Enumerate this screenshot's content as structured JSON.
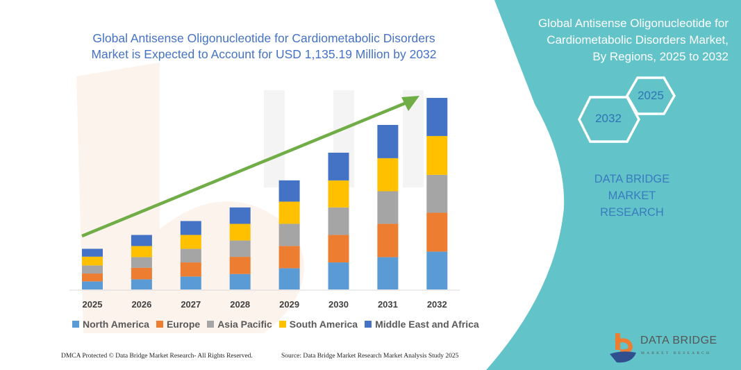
{
  "header": {
    "title_line1": "Global Antisense Oligonucleotide for Cardiometabolic Disorders",
    "title_line2": "Market is Expected to Account for USD 1,135.19 Million by 2032"
  },
  "side_panel": {
    "title_line1": "Global Antisense Oligonucleotide for",
    "title_line2": "Cardiometabolic Disorders Market,",
    "title_line3": "By Regions, 2025 to 2032",
    "hex_start": "2025",
    "hex_end": "2032",
    "brand_line1": "DATA BRIDGE MARKET",
    "brand_line2": "RESEARCH",
    "color": "#62c3c9"
  },
  "footer": {
    "copyright": "DMCA Protected © Data Bridge Market Research-  All Rights Reserved.",
    "source": "Source: Data Bridge Market Research  Market Analysis Study 2025"
  },
  "logo": {
    "name": "DATA BRIDGE",
    "sub": "MARKET RESEARCH"
  },
  "chart_data": {
    "type": "bar",
    "stacked": true,
    "title": "Global Antisense Oligonucleotide for Cardiometabolic Disorders Market is Expected to Account for USD 1,135.19 Million by 2032",
    "xlabel": "",
    "ylabel": "",
    "y_axis_shown": false,
    "grid": false,
    "legend_position": "bottom",
    "trend_arrow": true,
    "categories": [
      "2025",
      "2026",
      "2027",
      "2028",
      "2029",
      "2030",
      "2031",
      "2032"
    ],
    "series": [
      {
        "name": "North America",
        "color": "#5b9bd5",
        "values": [
          47.9,
          60.2,
          76.7,
          91.7,
          126.0,
          160.2,
          191.7,
          224.6
        ]
      },
      {
        "name": "Europe",
        "color": "#ed7d31",
        "values": [
          46.6,
          68.5,
          83.5,
          101.3,
          131.5,
          162.9,
          197.2,
          230.0
        ]
      },
      {
        "name": "Asia Pacific",
        "color": "#a5a5a5",
        "values": [
          47.9,
          63.0,
          80.8,
          97.2,
          131.5,
          162.9,
          193.1,
          224.6
        ]
      },
      {
        "name": "South America",
        "color": "#ffc000",
        "values": [
          52.0,
          65.7,
          82.2,
          98.6,
          131.5,
          160.2,
          195.8,
          230.0
        ]
      },
      {
        "name": "Middle East and Africa",
        "color": "#4472c4",
        "values": [
          46.6,
          65.7,
          82.2,
          97.2,
          126.0,
          164.3,
          197.2,
          225.9
        ]
      }
    ],
    "arrow_color": "#70ad47"
  }
}
